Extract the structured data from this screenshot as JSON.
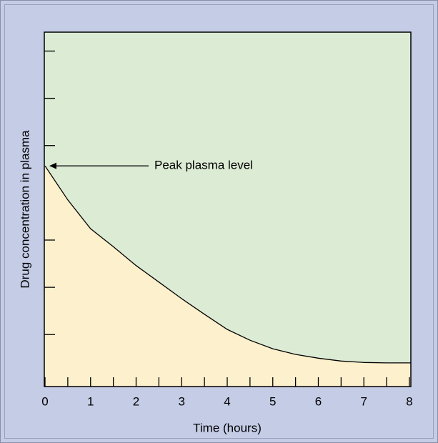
{
  "chart_data": {
    "type": "area",
    "xlabel": "Time  (hours)",
    "ylabel": "Drug concentration in plasma",
    "annotation": "Peak plasma level",
    "x": [
      0,
      0.5,
      1,
      1.5,
      2,
      2.5,
      3,
      3.5,
      4,
      4.5,
      5,
      5.5,
      6,
      6.5,
      7,
      7.5,
      8
    ],
    "values": [
      4.57,
      3.85,
      3.24,
      2.86,
      2.46,
      2.11,
      1.76,
      1.43,
      1.11,
      0.88,
      0.7,
      0.58,
      0.5,
      0.44,
      0.41,
      0.4,
      0.4
    ],
    "color": "#000000",
    "fill_below": "#fdf0cc",
    "fill_above": "#dcebd4",
    "xlim": [
      0,
      8
    ],
    "xticks": [
      0,
      1,
      2,
      3,
      4,
      5,
      6,
      7,
      8
    ],
    "xminorticks": [
      0.5,
      1.5,
      2.5,
      3.5,
      4.5,
      5.5,
      6.5,
      7.5
    ],
    "ylim": [
      -0.1,
      7.4
    ],
    "yticks": [
      1,
      2,
      3,
      5,
      6,
      7
    ]
  }
}
